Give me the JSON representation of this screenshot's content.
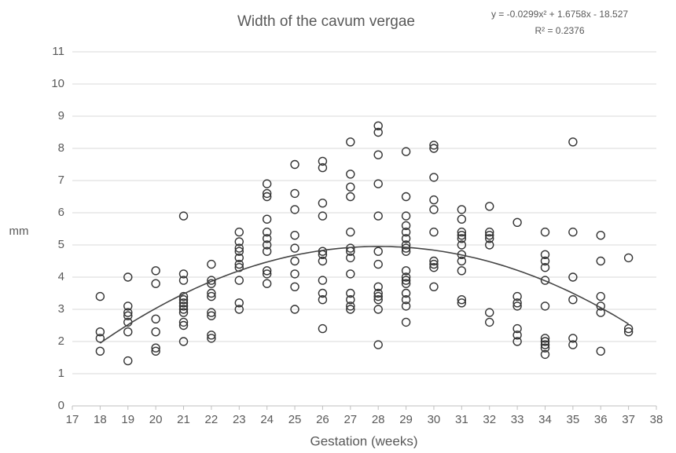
{
  "chart_data": {
    "type": "scatter",
    "title": "Width of the cavum vergae",
    "x_label": "Gestation (weeks)",
    "y_label": "mm",
    "trendline": {
      "equation": "y = -0.0299x² + 1.6758x - 18.527",
      "r_squared": "R² = 0.2376",
      "coefficients": [
        -0.0299,
        1.6758,
        -18.527
      ]
    },
    "xlim": [
      17,
      38
    ],
    "xticks": [
      17,
      18,
      19,
      20,
      21,
      22,
      23,
      24,
      25,
      26,
      27,
      28,
      29,
      30,
      31,
      32,
      33,
      34,
      35,
      36,
      37,
      38
    ],
    "ylim": [
      0,
      11
    ],
    "yticks": [
      0,
      1,
      2,
      3,
      4,
      5,
      6,
      7,
      8,
      9,
      10,
      11
    ],
    "grid": true,
    "color": "#333333",
    "line_color": "#444444",
    "x": [
      18,
      18,
      18,
      18,
      19,
      19,
      19,
      19,
      19,
      19,
      19,
      20,
      20,
      20,
      20,
      20,
      20,
      21,
      21,
      21,
      21,
      21,
      21,
      21,
      21,
      21,
      21,
      21,
      21,
      22,
      22,
      22,
      22,
      22,
      22,
      22,
      22,
      22,
      23,
      23,
      23,
      23,
      23,
      23,
      23,
      23,
      23,
      23,
      24,
      24,
      24,
      24,
      24,
      24,
      24,
      24,
      24,
      24,
      24,
      25,
      25,
      25,
      25,
      25,
      25,
      25,
      25,
      25,
      26,
      26,
      26,
      26,
      26,
      26,
      26,
      26,
      26,
      26,
      26,
      27,
      27,
      27,
      27,
      27,
      27,
      27,
      27,
      27,
      27,
      27,
      27,
      27,
      28,
      28,
      28,
      28,
      28,
      28,
      28,
      28,
      28,
      28,
      28,
      28,
      28,
      29,
      29,
      29,
      29,
      29,
      29,
      29,
      29,
      29,
      29,
      29,
      29,
      29,
      29,
      29,
      29,
      29,
      30,
      30,
      30,
      30,
      30,
      30,
      30,
      30,
      30,
      30,
      31,
      31,
      31,
      31,
      31,
      31,
      31,
      31,
      31,
      31,
      31,
      32,
      32,
      32,
      32,
      32,
      32,
      32,
      33,
      33,
      33,
      33,
      33,
      33,
      33,
      34,
      34,
      34,
      34,
      34,
      34,
      34,
      34,
      34,
      34,
      34,
      35,
      35,
      35,
      35,
      35,
      35,
      36,
      36,
      36,
      36,
      36,
      36,
      37,
      37,
      37
    ],
    "values": [
      3.4,
      2.3,
      2.1,
      1.7,
      4.0,
      3.1,
      2.9,
      2.8,
      2.6,
      2.3,
      1.4,
      4.2,
      3.8,
      2.7,
      2.3,
      1.8,
      1.7,
      5.9,
      4.1,
      3.9,
      3.4,
      3.3,
      3.2,
      3.1,
      3.0,
      2.9,
      2.6,
      2.5,
      2.0,
      4.4,
      3.9,
      3.8,
      3.5,
      3.4,
      2.9,
      2.8,
      2.2,
      2.1,
      5.4,
      5.1,
      4.9,
      4.8,
      4.6,
      4.4,
      4.3,
      3.9,
      3.2,
      3.0,
      6.9,
      6.6,
      6.5,
      5.8,
      5.4,
      5.2,
      5.0,
      4.8,
      4.2,
      4.1,
      3.8,
      7.5,
      6.6,
      6.1,
      5.3,
      4.9,
      4.5,
      4.1,
      3.7,
      3.0,
      7.6,
      7.4,
      6.3,
      5.9,
      4.8,
      4.7,
      4.5,
      3.9,
      3.5,
      3.3,
      2.4,
      8.2,
      7.2,
      6.8,
      6.5,
      5.4,
      4.9,
      4.8,
      4.6,
      4.1,
      3.5,
      3.3,
      3.1,
      3.0,
      8.7,
      8.5,
      7.8,
      6.9,
      5.9,
      4.8,
      4.4,
      3.7,
      3.5,
      3.4,
      3.3,
      3.0,
      1.9,
      7.9,
      6.5,
      5.9,
      5.6,
      5.4,
      5.2,
      5.0,
      4.9,
      4.8,
      4.2,
      4.0,
      3.9,
      3.8,
      3.5,
      3.3,
      3.1,
      2.6,
      8.1,
      8.0,
      7.1,
      6.4,
      6.1,
      5.4,
      4.5,
      4.4,
      4.3,
      3.7,
      6.1,
      5.8,
      5.4,
      5.3,
      5.2,
      5.0,
      4.7,
      4.5,
      4.2,
      3.3,
      3.2,
      6.2,
      5.4,
      5.3,
      5.2,
      5.0,
      2.9,
      2.6,
      5.7,
      3.4,
      3.2,
      3.1,
      2.4,
      2.2,
      2.0,
      5.4,
      4.7,
      4.5,
      4.3,
      3.9,
      3.1,
      2.1,
      2.0,
      1.9,
      1.8,
      1.6,
      8.2,
      5.4,
      4.0,
      3.3,
      2.1,
      1.9,
      5.3,
      4.5,
      3.4,
      3.1,
      2.9,
      1.7,
      4.6,
      2.4,
      2.3
    ]
  }
}
